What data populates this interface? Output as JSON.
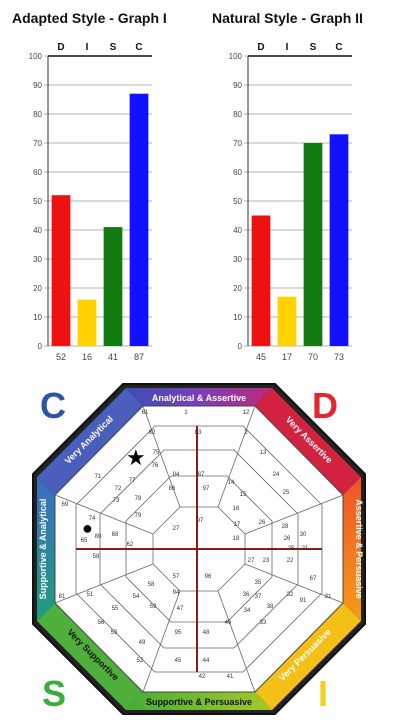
{
  "chart_data": [
    {
      "type": "bar",
      "title": "Adapted Style - Graph I",
      "categories": [
        "D",
        "I",
        "S",
        "C"
      ],
      "values": [
        52,
        16,
        41,
        87
      ],
      "value_labels": [
        "52",
        "16",
        "41",
        "87"
      ],
      "colors": [
        "#ee1111",
        "#ffd200",
        "#117a11",
        "#1111ff"
      ],
      "ylim": [
        0,
        100
      ],
      "yticks": [
        "0",
        "10",
        "20",
        "30",
        "40",
        "50",
        "60",
        "70",
        "80",
        "90",
        "100"
      ],
      "grid": true
    },
    {
      "type": "bar",
      "title": "Natural Style - Graph II",
      "categories": [
        "D",
        "I",
        "S",
        "C"
      ],
      "values": [
        45,
        17,
        70,
        73
      ],
      "value_labels": [
        "45",
        "17",
        "70",
        "73"
      ],
      "colors": [
        "#ee1111",
        "#ffd200",
        "#117a11",
        "#1111ff"
      ],
      "ylim": [
        0,
        100
      ],
      "yticks": [
        "0",
        "10",
        "20",
        "30",
        "40",
        "50",
        "60",
        "70",
        "80",
        "90",
        "100"
      ],
      "grid": true
    }
  ],
  "wheel": {
    "corner_letters": {
      "c": {
        "text": "C",
        "color": "#2b56a8"
      },
      "d": {
        "text": "D",
        "color": "#e0282e"
      },
      "s": {
        "text": "S",
        "color": "#3aae3a"
      },
      "i": {
        "text": "I",
        "color": "#f2d21e"
      }
    },
    "segments": {
      "top": "Analytical & Assertive",
      "top_right": "Very Assertive",
      "right": "Assertive & Persuasive",
      "bottom_right": "Very Persuasive",
      "bottom": "Supportive & Persuasive",
      "bottom_left": "Very Supportive",
      "left": "Supportive & Analytical",
      "top_left": "Very Analytical"
    },
    "markers": [
      {
        "name": "star",
        "symbol": "★"
      },
      {
        "name": "dot",
        "symbol": "●"
      }
    ],
    "cell_numbers": [
      "61",
      "1",
      "12",
      "82",
      "83",
      "75",
      "2",
      "13",
      "76",
      "84",
      "87",
      "24",
      "14",
      "25",
      "71",
      "77",
      "86",
      "97",
      "15",
      "72",
      "78",
      "16",
      "73",
      "26",
      "79",
      "17",
      "74",
      "28",
      "69",
      "80",
      "27",
      "65",
      "68",
      "62",
      "58",
      "18",
      "26",
      "57",
      "94",
      "97",
      "58",
      "96",
      "47",
      "54",
      "59",
      "95",
      "48",
      "55",
      "56",
      "46",
      "53",
      "52",
      "45",
      "49",
      "51",
      "44",
      "41",
      "42",
      "91",
      "32",
      "31",
      "35",
      "36",
      "34",
      "37",
      "33",
      "38",
      "67",
      "23",
      "22",
      "27",
      "21",
      "25",
      "30",
      "81"
    ]
  }
}
